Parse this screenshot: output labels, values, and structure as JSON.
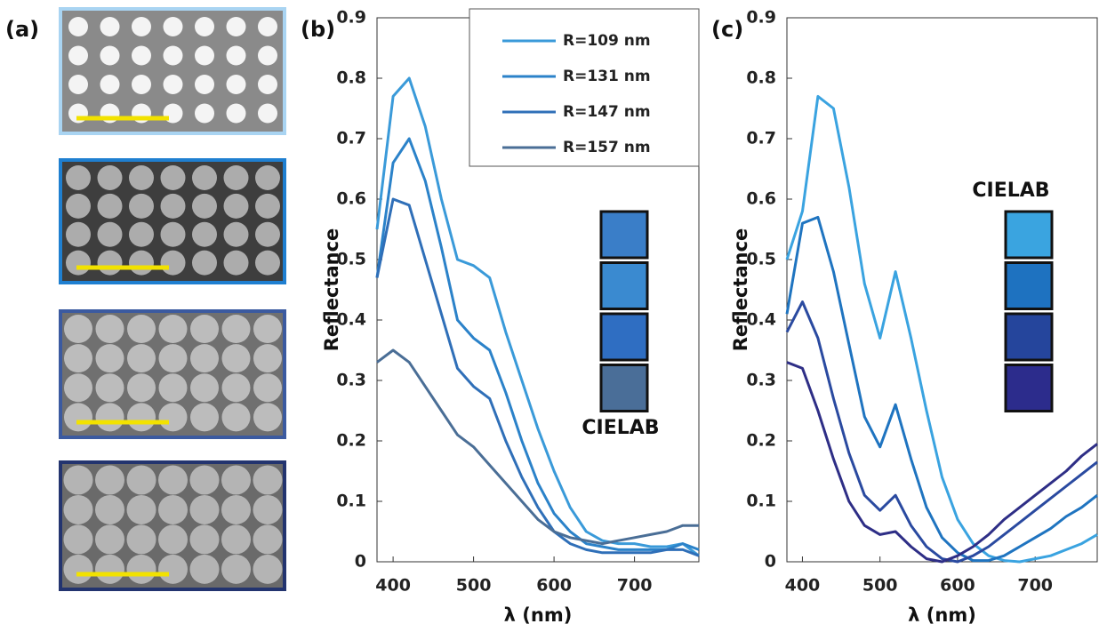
{
  "panel_a": {
    "label": "(a)"
  },
  "chart_data": [
    {
      "type": "line",
      "panel_label": "(b)",
      "x_label": "λ (nm)",
      "y_label": "Reflectance",
      "xlim": [
        380,
        780
      ],
      "xticks": [
        400,
        500,
        600,
        700
      ],
      "ylim": [
        0,
        0.9
      ],
      "yticks": [
        0,
        0.1,
        0.2,
        0.3,
        0.4,
        0.5,
        0.6,
        0.7,
        0.8,
        0.9
      ],
      "grid": false,
      "legend": "upper right",
      "x": [
        380,
        400,
        420,
        440,
        460,
        480,
        500,
        520,
        540,
        560,
        580,
        600,
        620,
        640,
        660,
        680,
        700,
        720,
        740,
        760,
        780
      ],
      "series": [
        {
          "name": "R=109 nm",
          "color": "#3a9ad9",
          "values": [
            0.55,
            0.77,
            0.8,
            0.72,
            0.6,
            0.5,
            0.49,
            0.47,
            0.38,
            0.3,
            0.22,
            0.15,
            0.09,
            0.05,
            0.035,
            0.03,
            0.03,
            0.025,
            0.025,
            0.03,
            0.01
          ]
        },
        {
          "name": "R=131 nm",
          "color": "#2b82c9",
          "values": [
            0.47,
            0.66,
            0.7,
            0.63,
            0.52,
            0.4,
            0.37,
            0.35,
            0.28,
            0.2,
            0.13,
            0.08,
            0.05,
            0.03,
            0.025,
            0.02,
            0.02,
            0.02,
            0.02,
            0.03,
            0.02
          ]
        },
        {
          "name": "R=147 nm",
          "color": "#2f6fb8",
          "values": [
            0.47,
            0.6,
            0.59,
            0.5,
            0.41,
            0.32,
            0.29,
            0.27,
            0.2,
            0.14,
            0.09,
            0.05,
            0.03,
            0.02,
            0.015,
            0.015,
            0.015,
            0.015,
            0.02,
            0.02,
            0.01
          ]
        },
        {
          "name": "R=157 nm",
          "color": "#4a6e96",
          "values": [
            0.33,
            0.35,
            0.33,
            0.29,
            0.25,
            0.21,
            0.19,
            0.16,
            0.13,
            0.1,
            0.07,
            0.05,
            0.04,
            0.035,
            0.03,
            0.035,
            0.04,
            0.045,
            0.05,
            0.06,
            0.06
          ]
        }
      ],
      "cielab": {
        "label": "CIELAB",
        "colors": [
          "#3a7ec8",
          "#3a8ad0",
          "#2f6ec2",
          "#4a6e98"
        ]
      }
    },
    {
      "type": "line",
      "panel_label": "(c)",
      "x_label": "λ (nm)",
      "y_label": "Reflectance",
      "xlim": [
        380,
        780
      ],
      "xticks": [
        400,
        500,
        600,
        700
      ],
      "ylim": [
        0,
        0.9
      ],
      "yticks": [
        0,
        0.1,
        0.2,
        0.3,
        0.4,
        0.5,
        0.6,
        0.7,
        0.8,
        0.9
      ],
      "grid": false,
      "x": [
        380,
        400,
        420,
        440,
        460,
        480,
        500,
        520,
        540,
        560,
        580,
        600,
        620,
        640,
        660,
        680,
        700,
        720,
        740,
        760,
        780
      ],
      "series": [
        {
          "color": "#3aa3e0",
          "values": [
            0.5,
            0.58,
            0.77,
            0.75,
            0.62,
            0.46,
            0.37,
            0.48,
            0.37,
            0.25,
            0.14,
            0.07,
            0.03,
            0.01,
            0.002,
            0,
            0.005,
            0.01,
            0.02,
            0.03,
            0.045
          ]
        },
        {
          "color": "#1f74c0",
          "values": [
            0.41,
            0.56,
            0.57,
            0.48,
            0.36,
            0.24,
            0.19,
            0.26,
            0.17,
            0.09,
            0.04,
            0.015,
            0.002,
            0.002,
            0.01,
            0.025,
            0.04,
            0.055,
            0.075,
            0.09,
            0.11
          ]
        },
        {
          "color": "#2a4aa0",
          "values": [
            0.38,
            0.43,
            0.37,
            0.27,
            0.18,
            0.11,
            0.085,
            0.11,
            0.06,
            0.025,
            0.005,
            0,
            0.01,
            0.025,
            0.045,
            0.065,
            0.085,
            0.105,
            0.125,
            0.145,
            0.165
          ]
        },
        {
          "color": "#2e2e86",
          "values": [
            0.33,
            0.32,
            0.25,
            0.17,
            0.1,
            0.06,
            0.045,
            0.05,
            0.025,
            0.005,
            0,
            0.01,
            0.025,
            0.045,
            0.07,
            0.09,
            0.11,
            0.13,
            0.15,
            0.175,
            0.195
          ]
        }
      ],
      "cielab": {
        "label": "CIELAB",
        "colors": [
          "#3aa4e0",
          "#1e72c0",
          "#25459c",
          "#2c2c8c"
        ]
      }
    }
  ]
}
